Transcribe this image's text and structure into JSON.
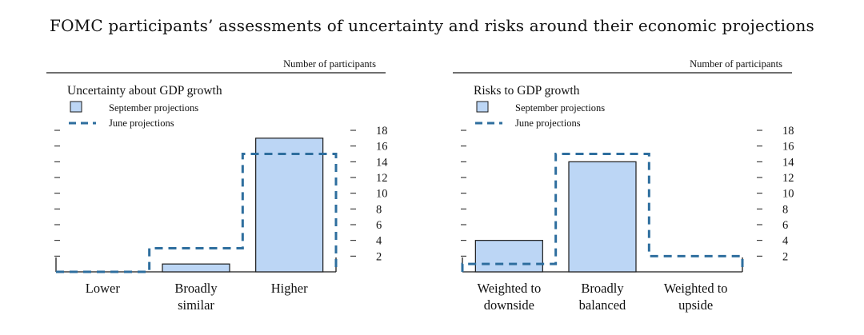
{
  "figure_title": "FOMC participants’ assessments of uncertainty and risks around their economic projections",
  "colors": {
    "bar_fill": "#bcd6f5",
    "bar_stroke": "#1a1a1a",
    "june_line": "#2e6e9e",
    "axis": "#1a1a1a"
  },
  "chart_data": [
    {
      "type": "bar",
      "title": "Uncertainty about GDP growth",
      "units_label": "Number of participants",
      "legend": {
        "september": "September projections",
        "june": "June projections"
      },
      "categories": [
        "Lower",
        "Broadly similar",
        "Higher"
      ],
      "category_lines": [
        [
          "Lower"
        ],
        [
          "Broadly",
          "similar"
        ],
        [
          "Higher"
        ]
      ],
      "series": [
        {
          "name": "September projections",
          "style": "filled-bar",
          "values": [
            0,
            1,
            17
          ]
        },
        {
          "name": "June projections",
          "style": "dashed-outline",
          "values": [
            0,
            3,
            15
          ]
        }
      ],
      "ylim": [
        0,
        18
      ],
      "yticks": [
        2,
        4,
        6,
        8,
        10,
        12,
        14,
        16,
        18
      ]
    },
    {
      "type": "bar",
      "title": "Risks to GDP growth",
      "units_label": "Number of participants",
      "legend": {
        "september": "September projections",
        "june": "June projections"
      },
      "categories": [
        "Weighted to downside",
        "Broadly balanced",
        "Weighted to upside"
      ],
      "category_lines": [
        [
          "Weighted to",
          "downside"
        ],
        [
          "Broadly",
          "balanced"
        ],
        [
          "Weighted to",
          "upside"
        ]
      ],
      "series": [
        {
          "name": "September projections",
          "style": "filled-bar",
          "values": [
            4,
            14,
            0
          ]
        },
        {
          "name": "June projections",
          "style": "dashed-outline",
          "values": [
            1,
            15,
            2
          ]
        }
      ],
      "ylim": [
        0,
        18
      ],
      "yticks": [
        2,
        4,
        6,
        8,
        10,
        12,
        14,
        16,
        18
      ]
    }
  ]
}
